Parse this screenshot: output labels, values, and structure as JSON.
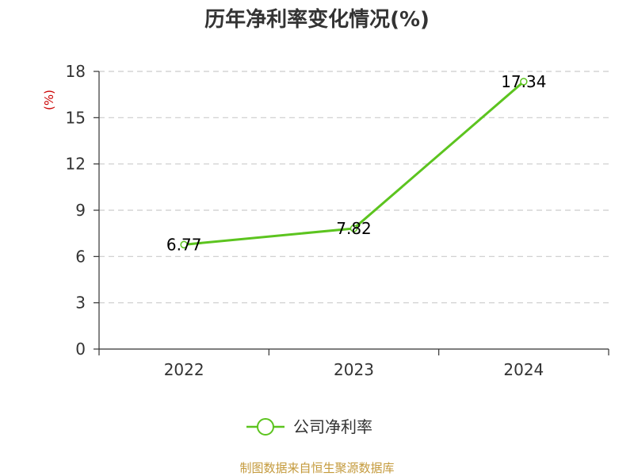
{
  "chart_data": {
    "type": "line",
    "title": "历年净利率变化情况(%)",
    "ylabel": "(%)",
    "xlabel": "",
    "categories": [
      "2022",
      "2023",
      "2024"
    ],
    "ylim": [
      0,
      18
    ],
    "yticks": [
      "0",
      "3",
      "6",
      "9",
      "12",
      "15",
      "18"
    ],
    "grid": true,
    "legend_position": "bottom",
    "series": [
      {
        "name": "公司净利率",
        "values": [
          6.77,
          7.82,
          17.34
        ],
        "labels": [
          "6.77",
          "7.82",
          "17.34"
        ]
      }
    ]
  },
  "source_text": "制图数据来自恒生聚源数据库",
  "colors": {
    "series": "#5cc41f",
    "ylabel": "#cc0000",
    "source": "#c49a3c",
    "grid": "#cccccc",
    "axis": "#333333"
  }
}
